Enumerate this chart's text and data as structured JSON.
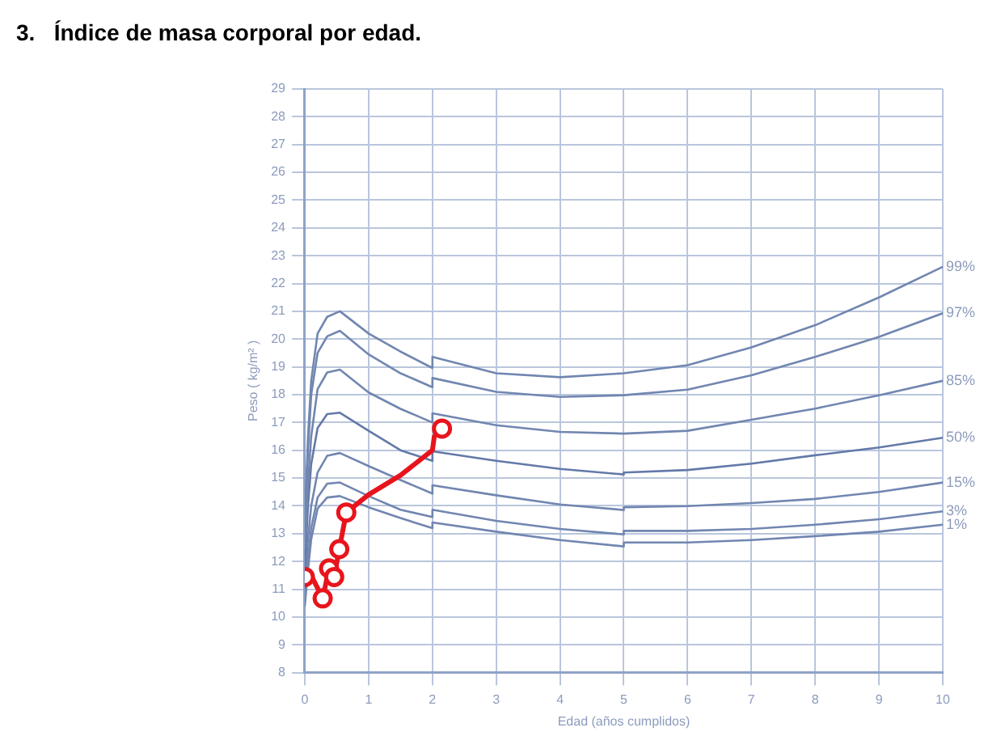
{
  "chart_data": {
    "type": "line",
    "title": "3.   Índice de masa corporal por edad.",
    "xlabel": "Edad (años cumplidos)",
    "ylabel": "Peso ( kg/m² )",
    "xlim": [
      0,
      10
    ],
    "xticks": [
      0,
      1,
      2,
      3,
      4,
      5,
      6,
      7,
      8,
      9,
      10
    ],
    "ylim": [
      8,
      29
    ],
    "yticks": [
      8,
      9,
      10,
      11,
      12,
      13,
      14,
      15,
      16,
      17,
      18,
      19,
      20,
      21,
      22,
      23,
      24,
      25,
      26,
      27,
      28,
      29
    ],
    "grid": true,
    "series": [
      {
        "name": "99%",
        "color": "#7186b0",
        "marker": "none",
        "x": [
          0,
          0.05,
          0.1,
          0.2,
          0.35,
          0.55,
          1,
          1.5,
          2,
          2,
          3,
          4,
          5,
          6,
          7,
          8,
          9,
          10
        ],
        "values": [
          13.5,
          16.5,
          18.5,
          20.2,
          20.8,
          21.0,
          20.2,
          19.55,
          18.96,
          19.36,
          18.77,
          18.63,
          18.77,
          19.06,
          19.7,
          20.5,
          21.5,
          22.6
        ]
      },
      {
        "name": "97%",
        "color": "#7186b0",
        "marker": "none",
        "x": [
          0,
          0.05,
          0.1,
          0.2,
          0.35,
          0.55,
          1,
          1.5,
          2,
          2,
          3,
          4,
          5,
          6,
          7,
          8,
          9,
          10
        ],
        "values": [
          13.3,
          16.0,
          18.0,
          19.5,
          20.1,
          20.3,
          19.45,
          18.77,
          18.27,
          18.6,
          18.1,
          17.92,
          17.98,
          18.18,
          18.7,
          19.36,
          20.08,
          20.93
        ]
      },
      {
        "name": "85%",
        "color": "#7186b0",
        "marker": "none",
        "x": [
          0,
          0.05,
          0.1,
          0.2,
          0.35,
          0.55,
          1,
          1.5,
          2,
          2,
          3,
          4,
          5,
          6,
          7,
          8,
          9,
          10
        ],
        "values": [
          12.5,
          14.8,
          16.5,
          18.2,
          18.8,
          18.9,
          18.08,
          17.49,
          17.0,
          17.33,
          16.9,
          16.66,
          16.6,
          16.7,
          17.1,
          17.5,
          17.98,
          18.5
        ]
      },
      {
        "name": "50%",
        "color": "#6379a8",
        "marker": "none",
        "x": [
          0,
          0.05,
          0.1,
          0.2,
          0.35,
          0.55,
          1,
          1.5,
          2,
          2,
          3,
          4,
          5,
          5,
          6,
          7,
          8,
          9,
          10
        ],
        "values": [
          11.8,
          14.0,
          15.5,
          16.8,
          17.3,
          17.35,
          16.7,
          16.0,
          15.62,
          15.96,
          15.62,
          15.33,
          15.13,
          15.2,
          15.29,
          15.52,
          15.82,
          16.1,
          16.45
        ]
      },
      {
        "name": "15%",
        "color": "#7186b0",
        "marker": "none",
        "x": [
          0,
          0.05,
          0.1,
          0.2,
          0.35,
          0.55,
          1,
          1.5,
          2,
          2,
          3,
          4,
          5,
          5,
          6,
          7,
          8,
          9,
          10
        ],
        "values": [
          11.3,
          12.8,
          14.0,
          15.2,
          15.8,
          15.9,
          15.43,
          14.93,
          14.44,
          14.74,
          14.38,
          14.05,
          13.85,
          13.95,
          13.99,
          14.1,
          14.25,
          14.5,
          14.84
        ]
      },
      {
        "name": "3%",
        "color": "#7186b0",
        "marker": "none",
        "x": [
          0,
          0.05,
          0.1,
          0.2,
          0.35,
          0.55,
          1,
          1.5,
          2,
          2,
          3,
          4,
          5,
          5,
          6,
          7,
          8,
          9,
          10
        ],
        "values": [
          10.8,
          12.1,
          13.2,
          14.3,
          14.8,
          14.84,
          14.35,
          13.86,
          13.6,
          13.86,
          13.46,
          13.17,
          12.97,
          13.1,
          13.1,
          13.17,
          13.32,
          13.52,
          13.8
        ]
      },
      {
        "name": "1%",
        "color": "#7186b0",
        "marker": "none",
        "x": [
          0,
          0.05,
          0.1,
          0.2,
          0.35,
          0.55,
          1,
          1.5,
          2,
          2,
          3,
          4,
          5,
          5,
          6,
          7,
          8,
          9,
          10
        ],
        "values": [
          10.4,
          11.7,
          12.8,
          13.9,
          14.3,
          14.35,
          13.95,
          13.56,
          13.2,
          13.4,
          13.07,
          12.77,
          12.54,
          12.68,
          12.68,
          12.77,
          12.91,
          13.07,
          13.32
        ]
      },
      {
        "type": "line",
        "color": "#e8141c",
        "marker": "none",
        "x": [
          0,
          0.1,
          0.28,
          0.38,
          0.46,
          0.54,
          0.65,
          1.0,
          1.5,
          2.0,
          2.03,
          2.15
        ],
        "values": [
          11.44,
          11.5,
          10.67,
          11.75,
          11.44,
          12.44,
          13.76,
          14.4,
          15.1,
          16.0,
          16.5,
          16.78
        ]
      },
      {
        "type": "scatter",
        "color": "#e8141c",
        "marker": "circle",
        "x": [
          0,
          0.28,
          0.38,
          0.46,
          0.54,
          0.65,
          2.15
        ],
        "values": [
          11.44,
          10.67,
          11.75,
          11.44,
          12.44,
          13.76,
          16.78
        ]
      }
    ]
  }
}
